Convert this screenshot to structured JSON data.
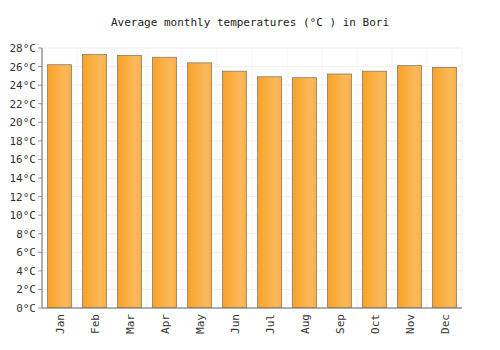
{
  "chart_data": {
    "type": "bar",
    "title": "Average monthly temperatures (°C ) in Bori",
    "categories": [
      "Jan",
      "Feb",
      "Mar",
      "Apr",
      "May",
      "Jun",
      "Jul",
      "Aug",
      "Sep",
      "Oct",
      "Nov",
      "Dec"
    ],
    "values": [
      26.2,
      27.3,
      27.2,
      27.0,
      26.4,
      25.5,
      24.9,
      24.8,
      25.2,
      25.5,
      26.1,
      25.9
    ],
    "color": "#f9a225",
    "ylim": [
      0,
      28
    ],
    "yticks": [
      {
        "value": 0,
        "label": "0°C"
      },
      {
        "value": 2,
        "label": "2°C"
      },
      {
        "value": 4,
        "label": "4°C"
      },
      {
        "value": 6,
        "label": "6°C"
      },
      {
        "value": 8,
        "label": "8°C"
      },
      {
        "value": 10,
        "label": "10°C"
      },
      {
        "value": 12,
        "label": "12°C"
      },
      {
        "value": 14,
        "label": "14°C"
      },
      {
        "value": 16,
        "label": "16°C"
      },
      {
        "value": 18,
        "label": "18°C"
      },
      {
        "value": 20,
        "label": "20°C"
      },
      {
        "value": 22,
        "label": "22°C"
      },
      {
        "value": 24,
        "label": "24°C"
      },
      {
        "value": 26,
        "label": "26°C"
      },
      {
        "value": 28,
        "label": "28°C"
      }
    ],
    "grid": true
  }
}
